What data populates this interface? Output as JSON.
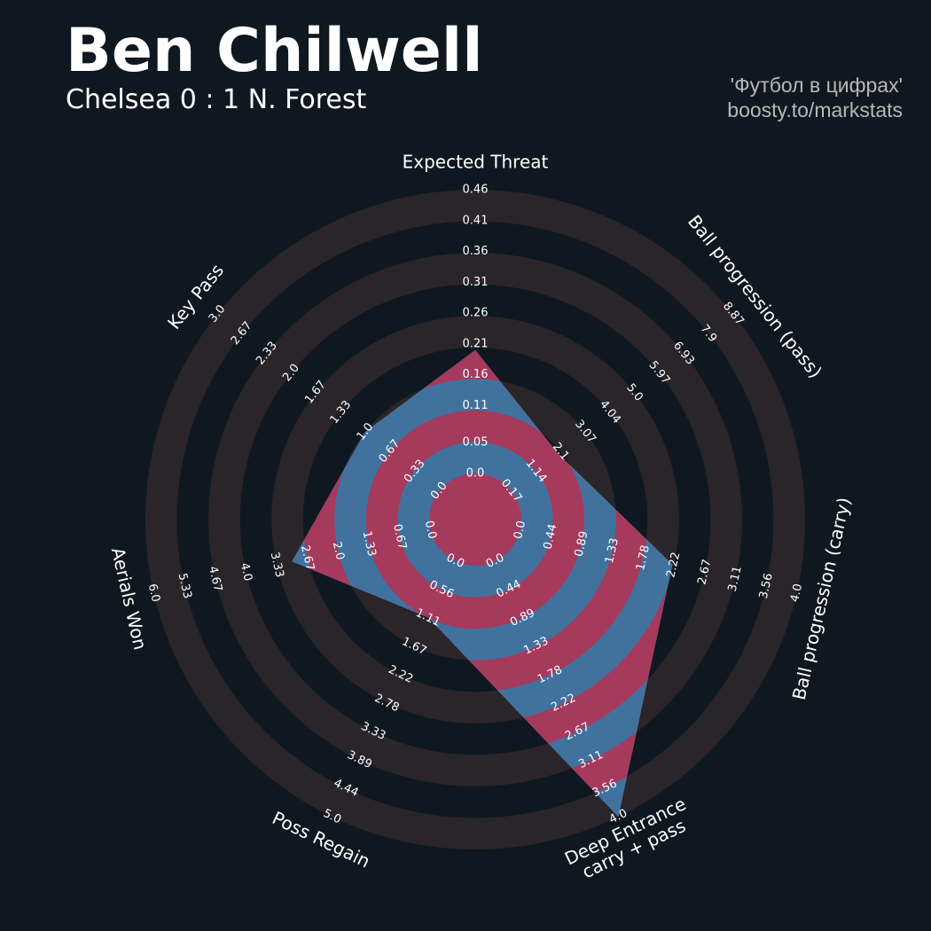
{
  "chart_data": {
    "type": "radar",
    "title": "Ben Chilwell",
    "subtitle": "Chelsea 0 : 1 N. Forest",
    "credits": [
      "'Футбол в цифрах'",
      "boosty.to/markstats"
    ],
    "params": [
      "Expected Threat",
      "Ball progression (pass)",
      "Ball progression (carry)",
      "Deep Entrance\ncarry + pass",
      "Poss Regain",
      "Aerials Won",
      "Key Pass"
    ],
    "ranges": [
      [
        0,
        0.46
      ],
      [
        0.17,
        8.87
      ],
      [
        0,
        4
      ],
      [
        0,
        4
      ],
      [
        0,
        5
      ],
      [
        0,
        6
      ],
      [
        0,
        3
      ]
    ],
    "ticks": [
      [
        {
          "value": 0,
          "label": "0.0"
        },
        0.05,
        0.11,
        0.16,
        0.21,
        0.26,
        0.31,
        0.36,
        0.41,
        0.46
      ],
      [
        0.17,
        1.14,
        2.1,
        3.07,
        4.04,
        {
          "value": 5,
          "label": "5.0"
        },
        5.97,
        6.93,
        7.9,
        8.87
      ],
      [
        {
          "value": 0,
          "label": "0.0"
        },
        0.44,
        0.89,
        1.33,
        1.78,
        2.22,
        2.67,
        3.11,
        3.56,
        {
          "value": 4,
          "label": "4.0"
        }
      ],
      [
        {
          "value": 0,
          "label": "0.0"
        },
        0.44,
        0.89,
        1.33,
        1.78,
        2.22,
        2.67,
        3.11,
        3.56,
        {
          "value": 4,
          "label": "4.0"
        }
      ],
      [
        {
          "value": 0,
          "label": "0.0"
        },
        0.56,
        1.11,
        1.67,
        2.22,
        2.78,
        3.33,
        3.89,
        4.44,
        {
          "value": 5,
          "label": "5.0"
        }
      ],
      [
        {
          "value": 0,
          "label": "0.0"
        },
        0.67,
        1.33,
        {
          "value": 2,
          "label": "2.0"
        },
        2.67,
        3.33,
        {
          "value": 4,
          "label": "4.0"
        },
        4.67,
        5.33,
        {
          "value": 6,
          "label": "6.0"
        }
      ],
      [
        {
          "value": 0,
          "label": "0.0"
        },
        0.33,
        0.67,
        {
          "value": 1,
          "label": "1.0"
        },
        1.33,
        1.67,
        {
          "value": 2,
          "label": "2.0"
        },
        2.33,
        2.67,
        {
          "value": 3,
          "label": "3.0"
        }
      ]
    ],
    "values": [
      0.2,
      2.0,
      2.2,
      4.0,
      1.1,
      3.0,
      1.0
    ],
    "color": "#41729e",
    "alt_color": "#a53a5d",
    "ring_color": "#2a2529",
    "background": "#0f1820"
  }
}
